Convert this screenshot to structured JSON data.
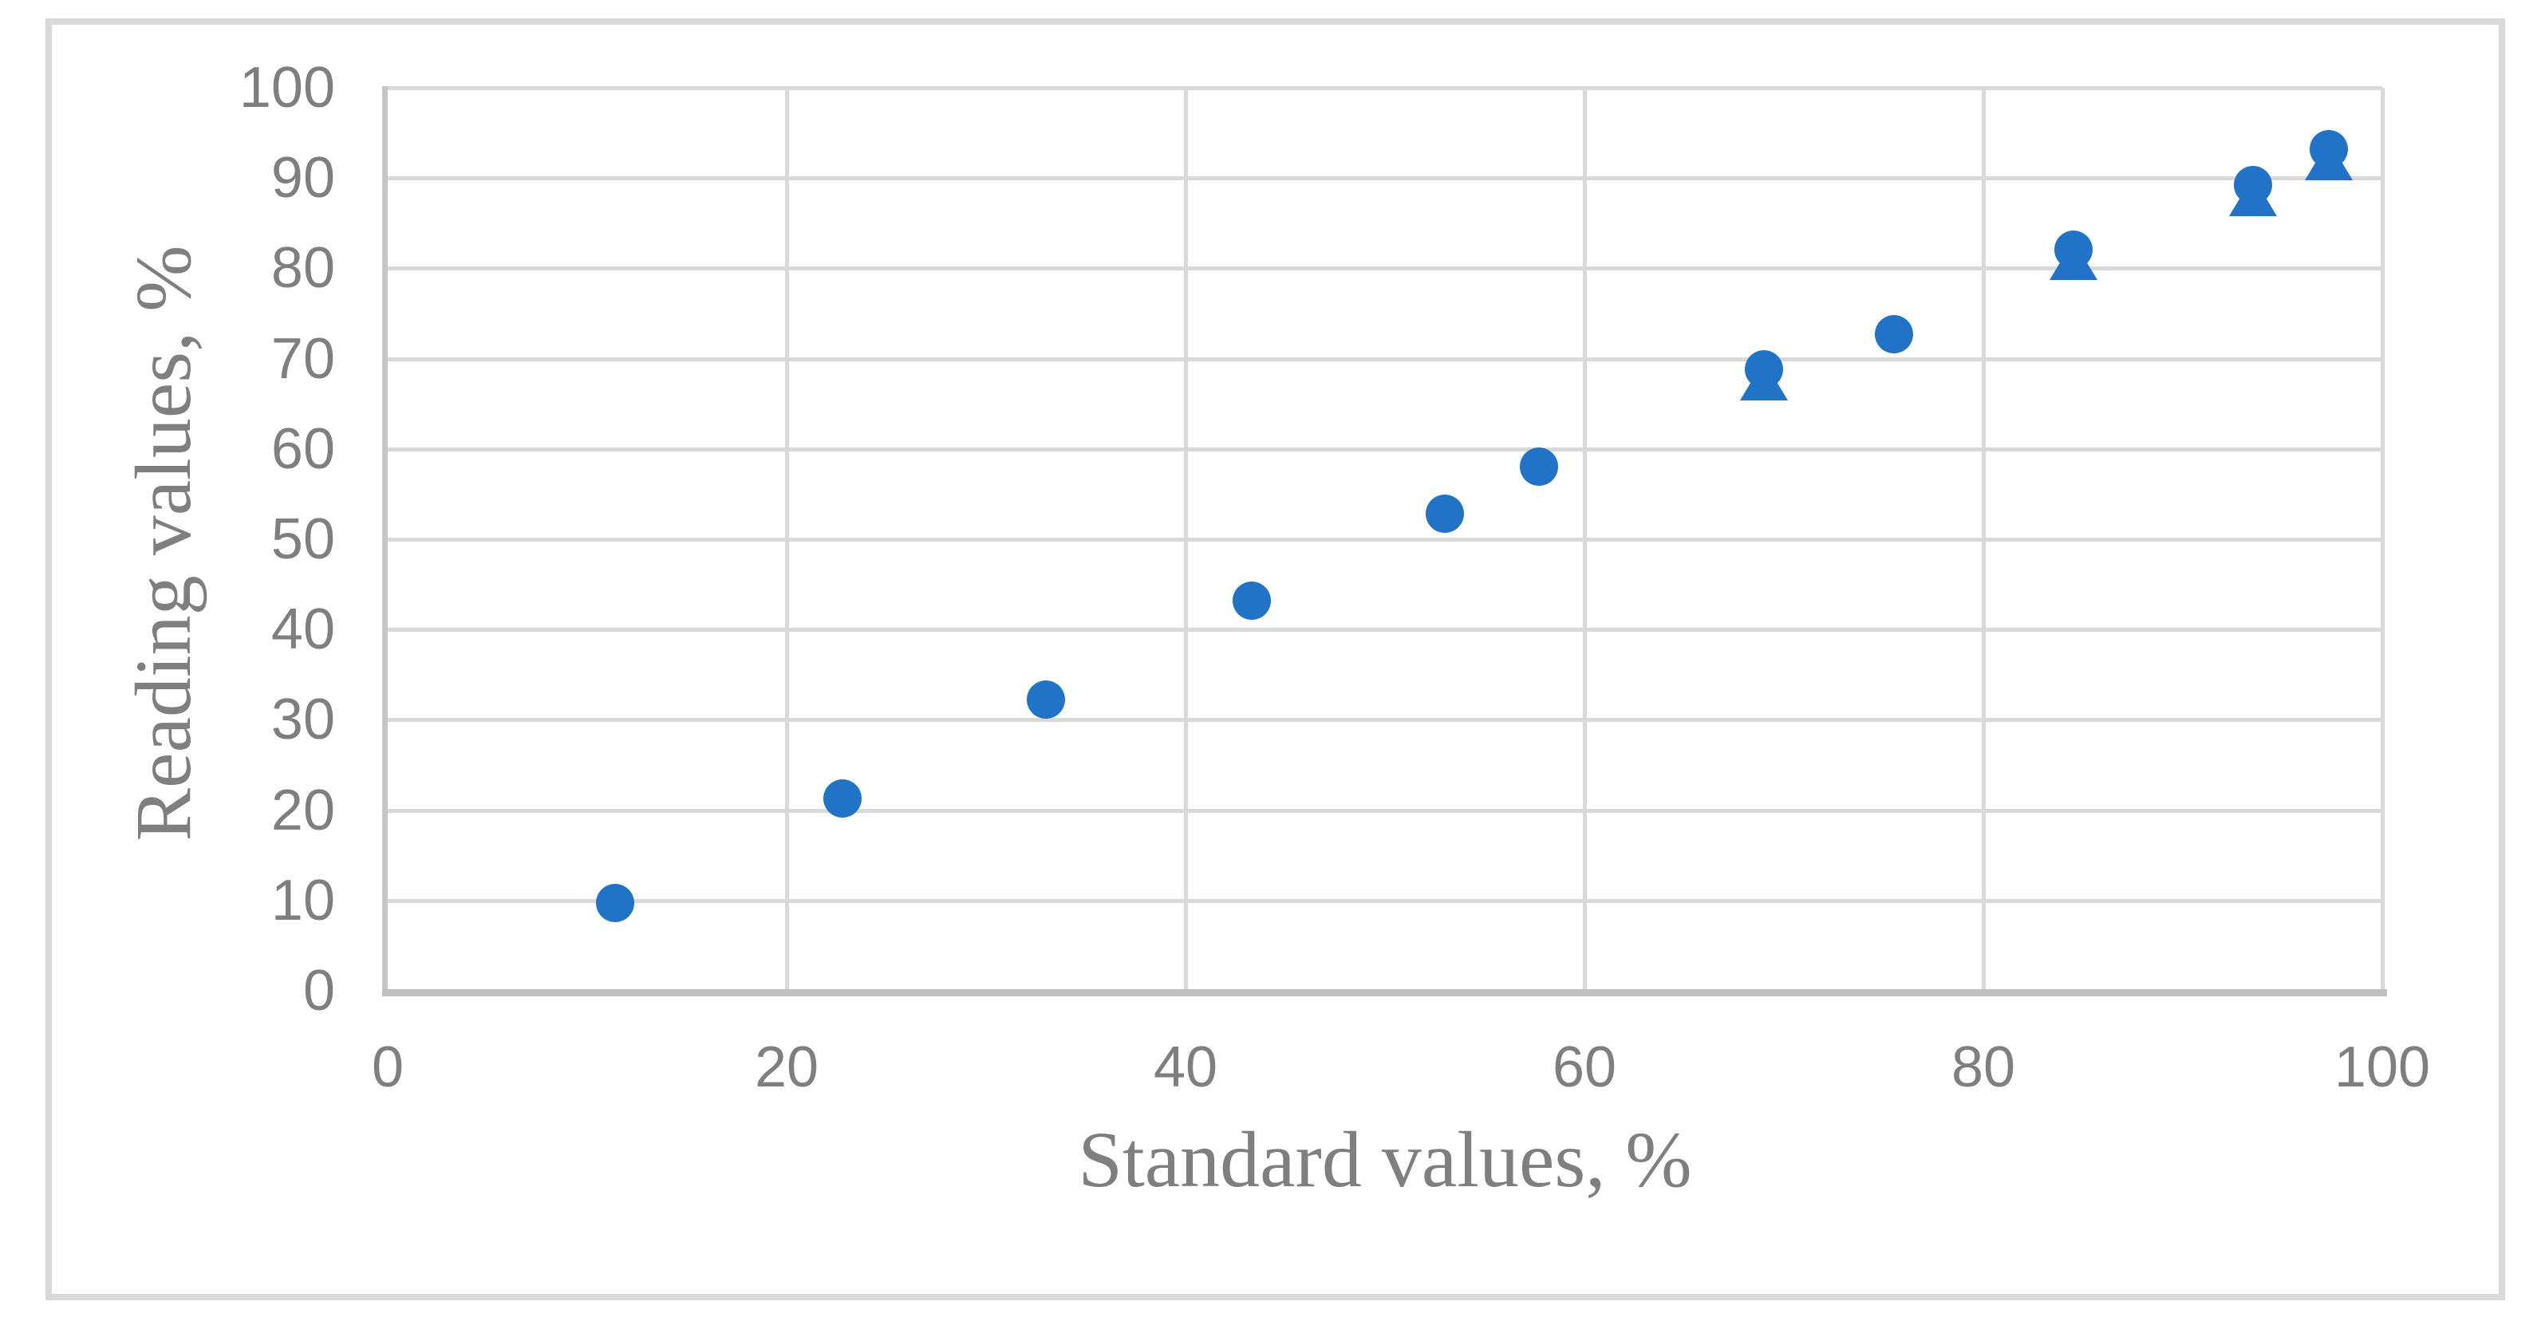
{
  "figure": {
    "background_color": "#FFFFFF",
    "border_color": "#D9D9D9"
  },
  "axes": {
    "x_title": "Standard values, %",
    "y_title": "Reading values, %",
    "text_color": "#7F7F7F",
    "gridline_color": "#D9D9D9",
    "axis_line_color": "#BFBFBF"
  },
  "chart_data": {
    "type": "scatter",
    "title": "",
    "xlabel": "Standard values, %",
    "ylabel": "Reading values, %",
    "xlim": [
      0,
      100
    ],
    "ylim": [
      0,
      100
    ],
    "x_ticks": [
      0,
      20,
      40,
      60,
      80,
      100
    ],
    "y_ticks": [
      0,
      10,
      20,
      30,
      40,
      50,
      60,
      70,
      80,
      90,
      100
    ],
    "grid": true,
    "legend": false,
    "marker_color": "#2073C6",
    "series": [
      {
        "name": "triangle markers (mostly hidden behind circles)",
        "marker": "triangle-up",
        "color": "#2073C6",
        "points": [
          {
            "x": 69.0,
            "y": 67.6
          },
          {
            "x": 84.5,
            "y": 80.9
          },
          {
            "x": 93.5,
            "y": 88.0
          },
          {
            "x": 97.3,
            "y": 92.0
          }
        ]
      },
      {
        "name": "circle markers (Reading vs Standard)",
        "marker": "circle",
        "color": "#2073C6",
        "points": [
          {
            "x": 11.4,
            "y": 9.7
          },
          {
            "x": 22.8,
            "y": 21.3
          },
          {
            "x": 33.0,
            "y": 32.2
          },
          {
            "x": 43.3,
            "y": 43.2
          },
          {
            "x": 53.0,
            "y": 52.8
          },
          {
            "x": 57.7,
            "y": 58.0
          },
          {
            "x": 69.0,
            "y": 68.8
          },
          {
            "x": 75.5,
            "y": 72.7
          },
          {
            "x": 84.5,
            "y": 82.1
          },
          {
            "x": 93.5,
            "y": 89.2
          },
          {
            "x": 97.3,
            "y": 93.2
          }
        ]
      }
    ]
  }
}
